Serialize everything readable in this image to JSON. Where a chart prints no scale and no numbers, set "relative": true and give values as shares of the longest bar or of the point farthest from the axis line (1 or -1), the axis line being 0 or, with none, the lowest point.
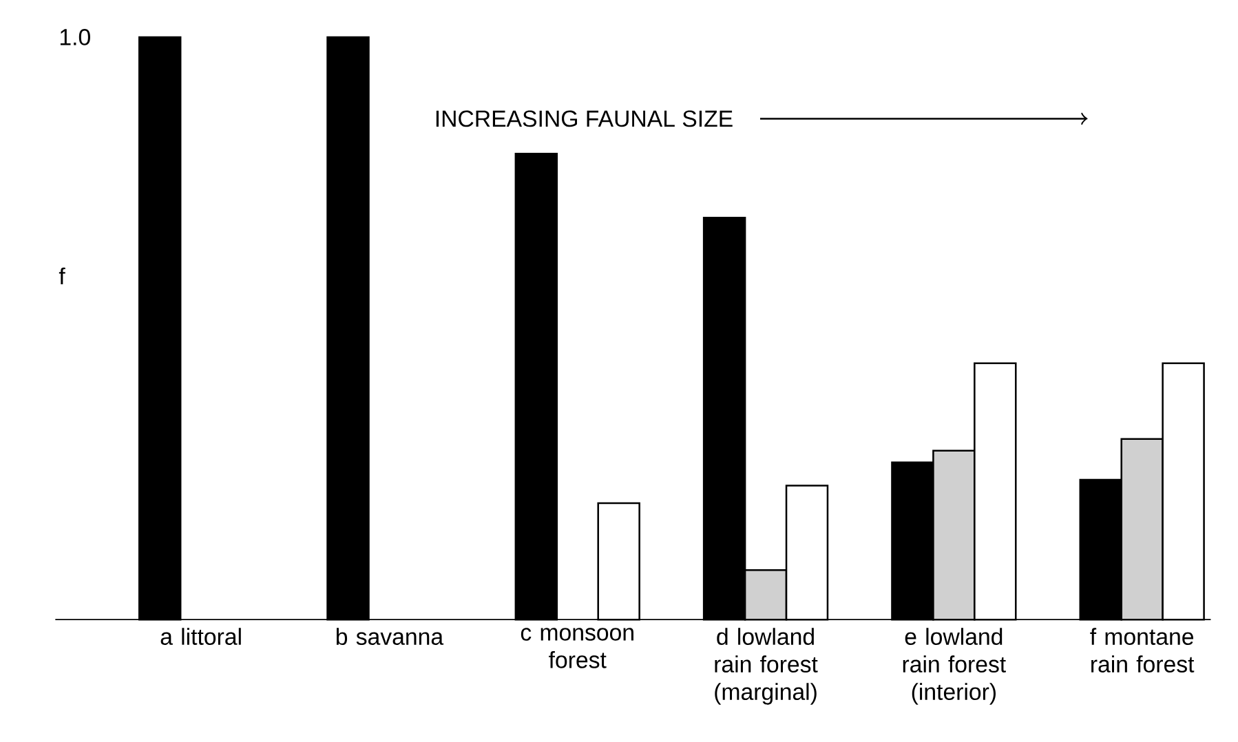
{
  "chart_data": {
    "type": "bar",
    "relative": true,
    "ylabel": "f",
    "categories": [
      "a littoral",
      "b savanna",
      "c monsoon forest",
      "d lowland rain forest (marginal)",
      "e lowland rain forest (interior)",
      "f montane rain forest"
    ],
    "series": [
      {
        "color": "#000000",
        "values": [
          1.0,
          1.0,
          0.8,
          0.69,
          0.27,
          0.24
        ]
      },
      {
        "color": "#d0d0d0",
        "values": [
          null,
          null,
          null,
          0.085,
          0.29,
          0.31
        ]
      },
      {
        "color": "#ffffff",
        "values": [
          null,
          null,
          0.2,
          0.23,
          0.44,
          0.44
        ]
      }
    ],
    "annotations": [
      "1.0",
      "INCREASING FAUNAL SIZE"
    ],
    "grid": false
  }
}
